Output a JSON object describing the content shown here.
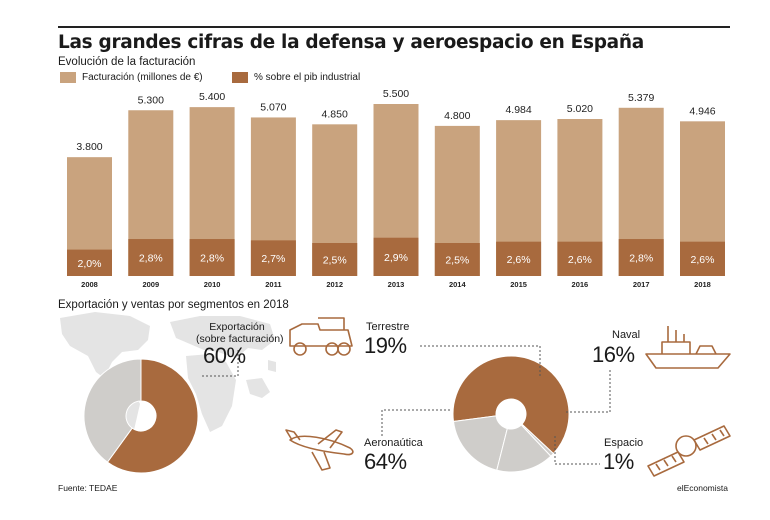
{
  "header": {
    "title": "Las grandes cifras de la defensa y aeroespacio en España",
    "subtitle": "Evolución de la facturación"
  },
  "colors": {
    "light": "#c9a37e",
    "dark": "#a86a3e",
    "gray": "#cfcdca",
    "map": "#e4e4e4",
    "text_white": "#ffffff"
  },
  "legend": {
    "facturacion": "Facturación (millones de €)",
    "pib": "% sobre el pib industrial"
  },
  "chart_data": [
    {
      "type": "bar",
      "categories": [
        "2008",
        "2009",
        "2010",
        "2011",
        "2012",
        "2013",
        "2014",
        "2015",
        "2016",
        "2017",
        "2018"
      ],
      "series": [
        {
          "name": "Facturación (millones de €)",
          "values": [
            3800,
            5300,
            5400,
            5070,
            4850,
            5500,
            4800,
            4984,
            5020,
            5379,
            4946
          ],
          "labels": [
            "3.800",
            "5.300",
            "5.400",
            "5.070",
            "4.850",
            "5.500",
            "4.800",
            "4.984",
            "5.020",
            "5.379",
            "4.946"
          ]
        },
        {
          "name": "% sobre el pib industrial",
          "values": [
            2.0,
            2.8,
            2.8,
            2.7,
            2.5,
            2.9,
            2.5,
            2.6,
            2.6,
            2.8,
            2.6
          ],
          "labels": [
            "2,0%",
            "2,8%",
            "2,8%",
            "2,7%",
            "2,5%",
            "2,9%",
            "2,5%",
            "2,6%",
            "2,6%",
            "2,8%",
            "2,6%"
          ]
        }
      ]
    },
    {
      "type": "pie",
      "slices": [
        {
          "label": "Exportación (sobre facturación)",
          "value": 60
        },
        {
          "label": "",
          "value": 40
        }
      ]
    },
    {
      "type": "pie",
      "slices": [
        {
          "label": "Aeronaútica",
          "value": 64
        },
        {
          "label": "Terrestre",
          "value": 19
        },
        {
          "label": "Naval",
          "value": 16
        },
        {
          "label": "Espacio",
          "value": 1
        }
      ]
    }
  ],
  "segments": {
    "title": "Exportación y ventas por segmentos en 2018",
    "export_label": "Exportación\n(sobre facturación)",
    "export_pct": "60%",
    "terrestre_label": "Terrestre",
    "terrestre_pct": "19%",
    "naval_label": "Naval",
    "naval_pct": "16%",
    "aero_label": "Aeronaútica",
    "aero_pct": "64%",
    "espacio_label": "Espacio",
    "espacio_pct": "1%"
  },
  "footer": {
    "source": "Fuente: TEDAE",
    "brand": "elEconomista"
  }
}
